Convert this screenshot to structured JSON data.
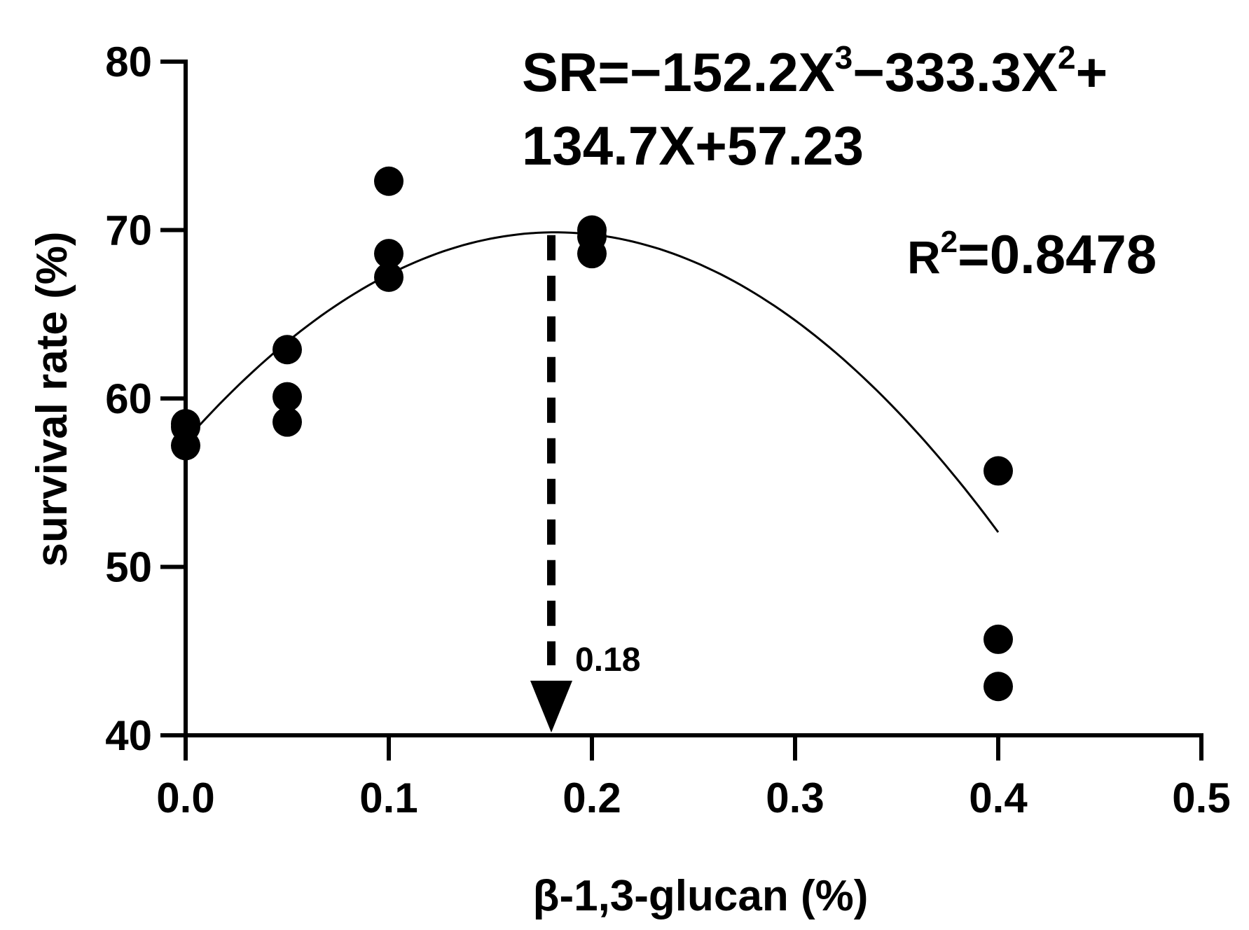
{
  "chart_data": {
    "type": "scatter",
    "xlabel": "β-1,3-glucan (%)",
    "ylabel": "survival rate (%)",
    "xlim": [
      0,
      0.5
    ],
    "ylim": [
      40,
      80
    ],
    "x_ticks": [
      "0.0",
      "0.1",
      "0.2",
      "0.3",
      "0.4",
      "0.5"
    ],
    "x_tick_values": [
      0,
      0.1,
      0.2,
      0.3,
      0.4,
      0.5
    ],
    "y_ticks": [
      "40",
      "50",
      "60",
      "70",
      "80"
    ],
    "y_tick_values": [
      40,
      50,
      60,
      70,
      80
    ],
    "grid": false,
    "points": [
      {
        "x": 0.0,
        "y": 58.5
      },
      {
        "x": 0.0,
        "y": 57.2
      },
      {
        "x": 0.0,
        "y": 58.3
      },
      {
        "x": 0.05,
        "y": 62.9
      },
      {
        "x": 0.05,
        "y": 60.1
      },
      {
        "x": 0.05,
        "y": 58.6
      },
      {
        "x": 0.1,
        "y": 72.9
      },
      {
        "x": 0.1,
        "y": 68.6
      },
      {
        "x": 0.1,
        "y": 67.2
      },
      {
        "x": 0.2,
        "y": 70.0
      },
      {
        "x": 0.2,
        "y": 68.6
      },
      {
        "x": 0.2,
        "y": 69.6
      },
      {
        "x": 0.4,
        "y": 55.7
      },
      {
        "x": 0.4,
        "y": 45.7
      },
      {
        "x": 0.4,
        "y": 42.9
      }
    ],
    "fit": {
      "type": "polynomial",
      "coefficients": {
        "a3": -152.2,
        "a2": -333.3,
        "a1": 134.7,
        "a0": 57.23
      },
      "x_range": [
        0,
        0.4
      ]
    },
    "annotations": {
      "equation_line1": "SR=−152.2X",
      "equation_sup1": "3",
      "equation_mid": "−333.3X",
      "equation_sup2": "2",
      "equation_end": "+",
      "equation_line2": "134.7X+57.23",
      "r2_prefix": "R",
      "r2_sup": "2",
      "r2_value": "=0.8478",
      "optimum_x": 0.18,
      "optimum_label": "0.18"
    }
  }
}
